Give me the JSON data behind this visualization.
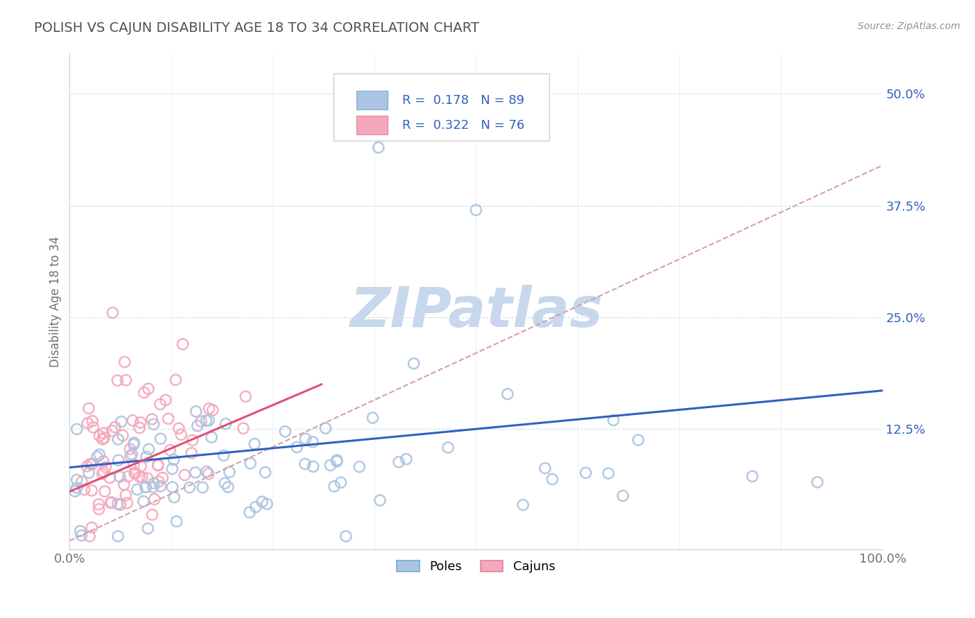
{
  "title": "POLISH VS CAJUN DISABILITY AGE 18 TO 34 CORRELATION CHART",
  "source_text": "Source: ZipAtlas.com",
  "ylabel": "Disability Age 18 to 34",
  "x_min": 0.0,
  "x_max": 1.0,
  "y_min": -0.01,
  "y_max": 0.545,
  "x_tick_labels": [
    "0.0%",
    "100.0%"
  ],
  "y_ticks": [
    0.125,
    0.25,
    0.375,
    0.5
  ],
  "y_tick_labels": [
    "12.5%",
    "25.0%",
    "37.5%",
    "50.0%"
  ],
  "poles_R": 0.178,
  "poles_N": 89,
  "cajuns_R": 0.322,
  "cajuns_N": 76,
  "poles_color": "#aac4e2",
  "cajuns_color": "#f5a8bc",
  "poles_edge_color": "#7aaad0",
  "cajuns_edge_color": "#e080a0",
  "poles_line_color": "#3060c0",
  "cajuns_line_color": "#e05070",
  "cajuns_dashed_color": "#d0a0a8",
  "title_color": "#505050",
  "legend_r_color": "#3060c0",
  "watermark_color": "#c8d8ec",
  "background_color": "#ffffff",
  "grid_color": "#d0dde8",
  "poles_line_start_y": 0.082,
  "poles_line_end_y": 0.168,
  "cajuns_line_start_x": 0.0,
  "cajuns_line_start_y": 0.055,
  "cajuns_line_end_x": 0.31,
  "cajuns_line_end_y": 0.175,
  "dashed_line_start_y": 0.0,
  "dashed_line_end_y": 0.42
}
